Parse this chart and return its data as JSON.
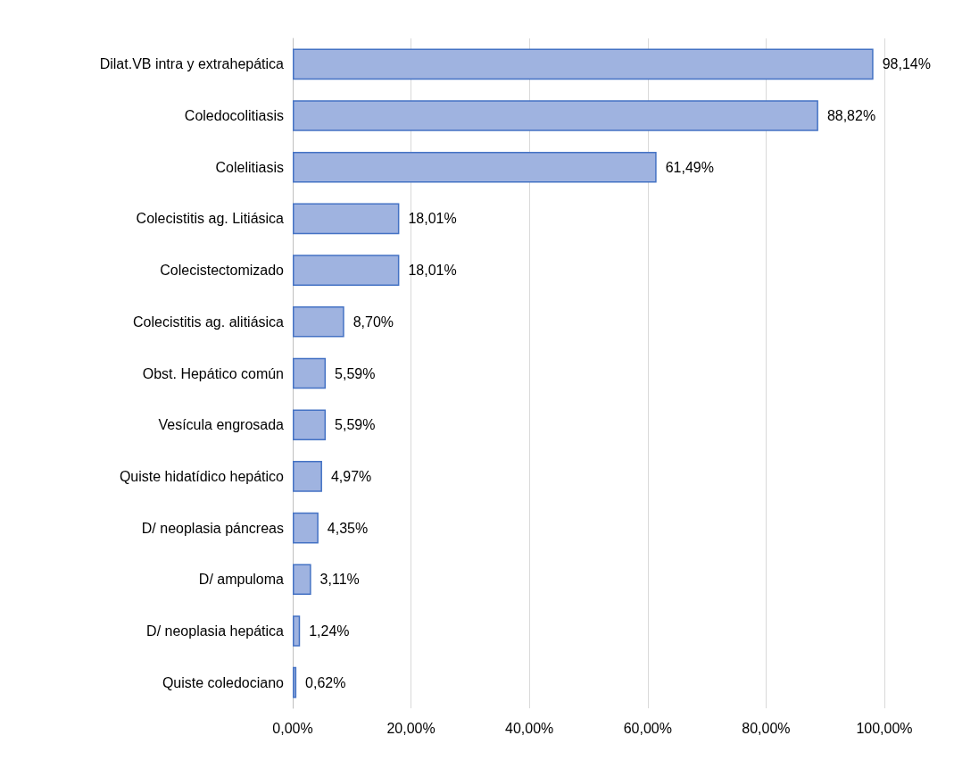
{
  "chart_data": {
    "type": "bar",
    "orientation": "horizontal",
    "categories": [
      "Dilat.VB intra y extrahepática",
      "Coledocolitiasis",
      "Colelitiasis",
      "Colecistitis ag. Litiásica",
      "Colecistectomizado",
      "Colecistitis ag. alitiásica",
      "Obst. Hepático común",
      "Vesícula engrosada",
      "Quiste hidatídico hepático",
      "D/ neoplasia páncreas",
      "D/ ampuloma",
      "D/ neoplasia hepática",
      "Quiste coledociano"
    ],
    "values": [
      98.14,
      88.82,
      61.49,
      18.01,
      18.01,
      8.7,
      5.59,
      5.59,
      4.97,
      4.35,
      3.11,
      1.24,
      0.62
    ],
    "value_labels": [
      "98,14%",
      "88,82%",
      "61,49%",
      "18,01%",
      "18,01%",
      "8,70%",
      "5,59%",
      "5,59%",
      "4,97%",
      "4,35%",
      "3,11%",
      "1,24%",
      "0,62%"
    ],
    "color": "#9fb3e0",
    "xlim": [
      0,
      100
    ],
    "xticks": [
      {
        "value": 0,
        "label": "0,00%"
      },
      {
        "value": 20,
        "label": "20,00%"
      },
      {
        "value": 40,
        "label": "40,00%"
      },
      {
        "value": 60,
        "label": "60,00%"
      },
      {
        "value": 80,
        "label": "80,00%"
      },
      {
        "value": 100,
        "label": "100,00%"
      }
    ],
    "grid": "x"
  }
}
